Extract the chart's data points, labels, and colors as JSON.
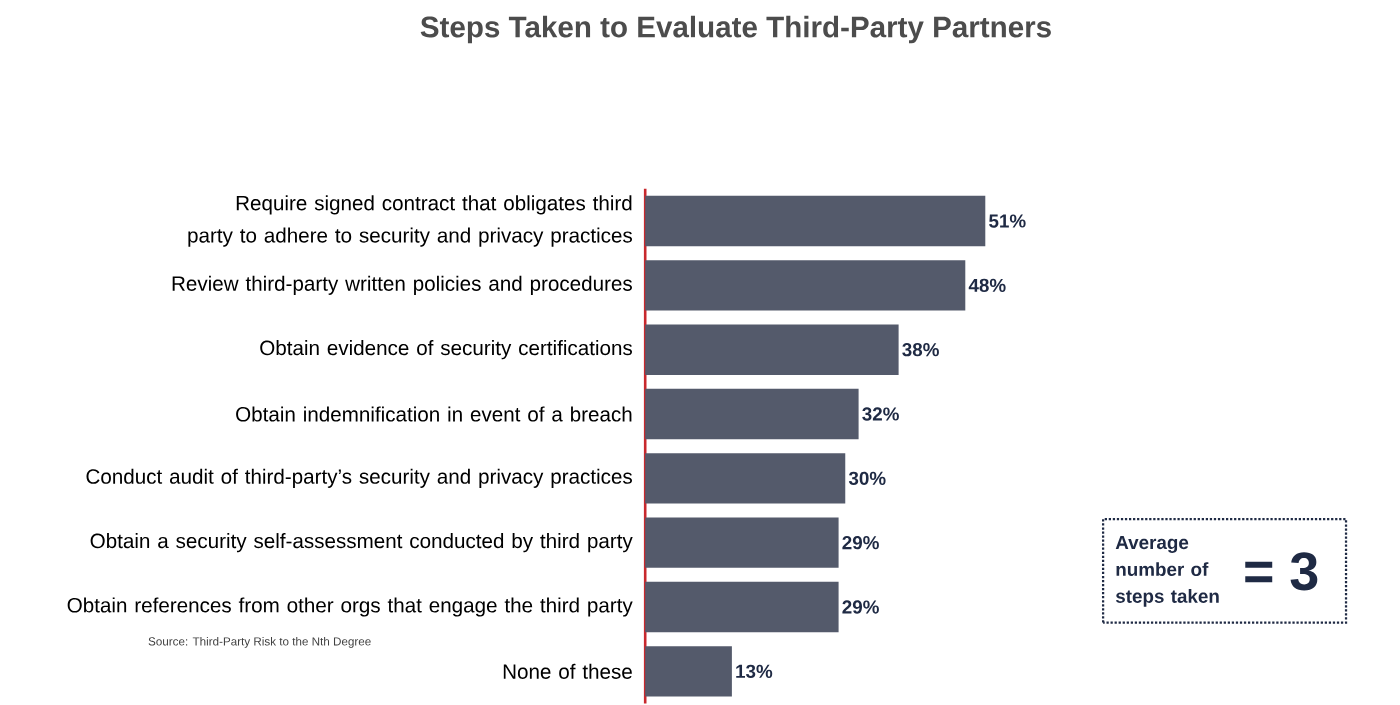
{
  "chart_data": {
    "type": "bar",
    "orientation": "horizontal",
    "title": "Steps Taken to Evaluate Third-Party Partners",
    "categories": [
      "Require signed contract that obligates third party to adhere to security and privacy practices",
      "Review third-party written policies and procedures",
      "Obtain evidence of security certifications",
      "Obtain indemnification in event of a breach",
      "Conduct audit of third-party’s security and privacy practices",
      "Obtain a security self-assessment conducted by third party",
      "Obtain references from other orgs that engage the third party",
      "None of these"
    ],
    "values": [
      51,
      48,
      38,
      32,
      30,
      29,
      29,
      13
    ],
    "value_labels": [
      "51%",
      "48%",
      "38%",
      "32%",
      "30%",
      "29%",
      "29%",
      "13%"
    ],
    "color": "#545a6b",
    "annotations": [
      "Average number of steps taken",
      "= 3",
      "Source: Third-Party Risk to the Nth Degree"
    ]
  }
}
